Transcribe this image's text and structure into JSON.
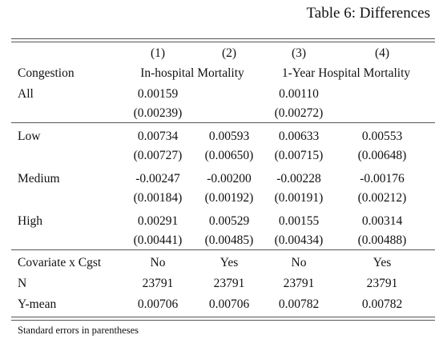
{
  "caption": "Table 6: Differences",
  "columns": {
    "numbers": [
      "(1)",
      "(2)",
      "(3)",
      "(4)"
    ],
    "row_header": "Congestion",
    "group1": "In-hospital Mortality",
    "group2": "1-Year Hospital Mortality"
  },
  "rows": {
    "all": {
      "label": "All",
      "coef": [
        "0.00159",
        "",
        "0.00110",
        ""
      ],
      "se": [
        "(0.00239)",
        "",
        "(0.00272)",
        ""
      ]
    },
    "low": {
      "label": "Low",
      "coef": [
        "0.00734",
        "0.00593",
        "0.00633",
        "0.00553"
      ],
      "se": [
        "(0.00727)",
        "(0.00650)",
        "(0.00715)",
        "(0.00648)"
      ]
    },
    "medium": {
      "label": "Medium",
      "coef": [
        "-0.00247",
        "-0.00200",
        "-0.00228",
        "-0.00176"
      ],
      "se": [
        "(0.00184)",
        "(0.00192)",
        "(0.00191)",
        "(0.00212)"
      ]
    },
    "high": {
      "label": "High",
      "coef": [
        "0.00291",
        "0.00529",
        "0.00155",
        "0.00314"
      ],
      "se": [
        "(0.00441)",
        "(0.00485)",
        "(0.00434)",
        "(0.00488)"
      ]
    }
  },
  "footer": {
    "covariate": {
      "label": "Covariate x Cgst",
      "values": [
        "No",
        "Yes",
        "No",
        "Yes"
      ]
    },
    "n": {
      "label": "N",
      "values": [
        "23791",
        "23791",
        "23791",
        "23791"
      ]
    },
    "ymean": {
      "label": "Y-mean",
      "values": [
        "0.00706",
        "0.00706",
        "0.00782",
        "0.00782"
      ]
    }
  },
  "note": "Standard errors in parentheses"
}
